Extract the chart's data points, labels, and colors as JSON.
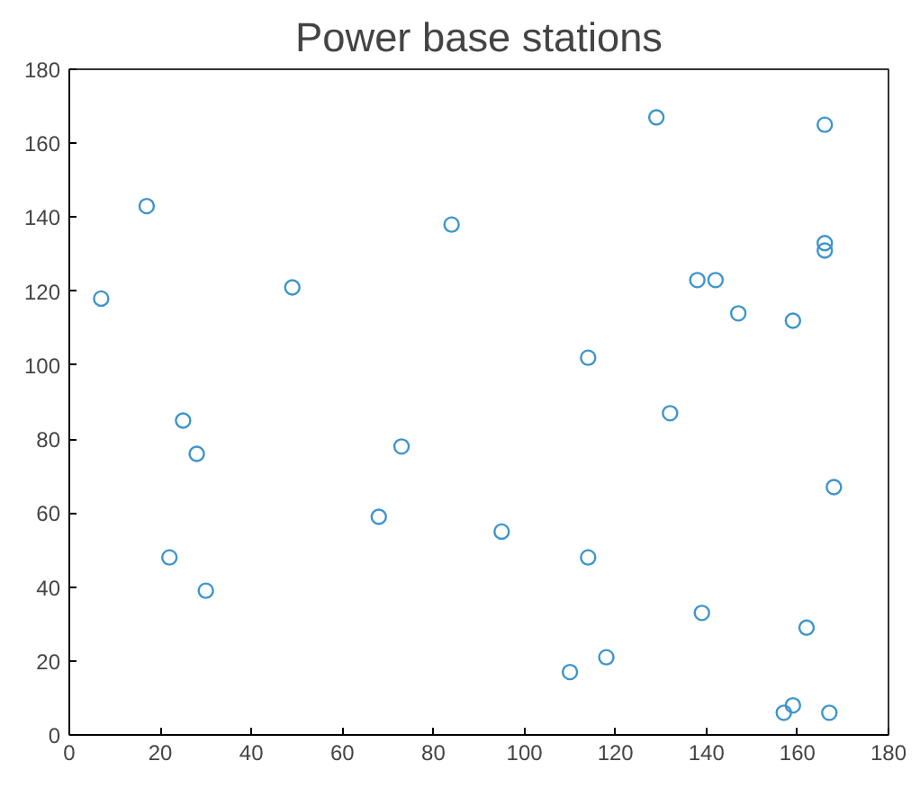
{
  "chart_data": {
    "type": "scatter",
    "title": "Power base stations",
    "marker": "circle",
    "grid": false,
    "xlim": [
      0,
      180
    ],
    "ylim": [
      0,
      180
    ],
    "xticks": [
      0,
      20,
      40,
      60,
      80,
      100,
      120,
      140,
      160,
      180
    ],
    "yticks": [
      0,
      20,
      40,
      60,
      80,
      100,
      120,
      140,
      160,
      180
    ],
    "series": [
      {
        "color": "#3d95cc",
        "x": [
          7,
          17,
          25,
          28,
          22,
          30,
          49,
          68,
          73,
          84,
          95,
          110,
          114,
          114,
          118,
          129,
          132,
          138,
          142,
          139,
          147,
          159,
          166,
          166,
          166,
          168,
          162,
          157,
          159,
          167
        ],
        "values": [
          118,
          143,
          85,
          76,
          48,
          39,
          121,
          59,
          78,
          138,
          55,
          17,
          102,
          48,
          21,
          167,
          87,
          123,
          123,
          33,
          114,
          112,
          165,
          133,
          131,
          67,
          29,
          6,
          8,
          6
        ]
      }
    ]
  }
}
